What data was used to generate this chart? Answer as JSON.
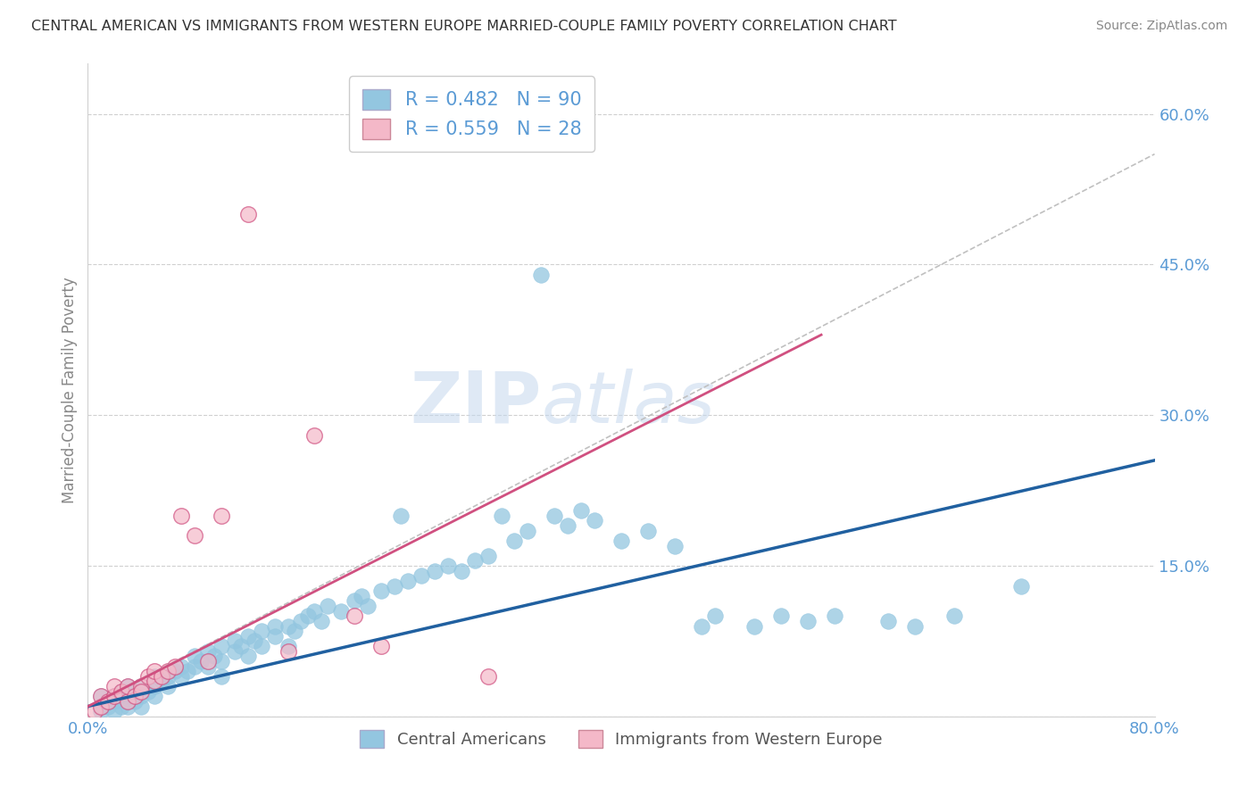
{
  "title": "CENTRAL AMERICAN VS IMMIGRANTS FROM WESTERN EUROPE MARRIED-COUPLE FAMILY POVERTY CORRELATION CHART",
  "source": "Source: ZipAtlas.com",
  "ylabel": "Married-Couple Family Poverty",
  "watermark_zip": "ZIP",
  "watermark_atlas": "atlas",
  "xlim": [
    0.0,
    0.8
  ],
  "ylim": [
    0.0,
    0.65
  ],
  "yticks": [
    0.0,
    0.15,
    0.3,
    0.45,
    0.6
  ],
  "yticklabels": [
    "",
    "15.0%",
    "30.0%",
    "45.0%",
    "60.0%"
  ],
  "legend_R_blue": "0.482",
  "legend_N_blue": "90",
  "legend_R_pink": "0.559",
  "legend_N_pink": "28",
  "legend_label_blue": "Central Americans",
  "legend_label_pink": "Immigrants from Western Europe",
  "blue_color": "#93c6e0",
  "pink_color": "#f4b8c8",
  "line_blue_color": "#2060a0",
  "line_pink_color": "#d05080",
  "axis_label_color": "#5b9bd5",
  "background_color": "#ffffff",
  "blue_line": [
    0.0,
    0.01,
    0.8,
    0.255
  ],
  "pink_line": [
    0.0,
    0.01,
    0.55,
    0.38
  ],
  "gray_dashed_line": [
    0.0,
    0.01,
    0.8,
    0.56
  ],
  "blue_scatter": [
    [
      0.01,
      0.005
    ],
    [
      0.01,
      0.01
    ],
    [
      0.01,
      0.02
    ],
    [
      0.015,
      0.01
    ],
    [
      0.02,
      0.015
    ],
    [
      0.02,
      0.005
    ],
    [
      0.02,
      0.02
    ],
    [
      0.025,
      0.01
    ],
    [
      0.025,
      0.025
    ],
    [
      0.03,
      0.01
    ],
    [
      0.03,
      0.02
    ],
    [
      0.03,
      0.03
    ],
    [
      0.035,
      0.015
    ],
    [
      0.035,
      0.025
    ],
    [
      0.04,
      0.02
    ],
    [
      0.04,
      0.03
    ],
    [
      0.04,
      0.01
    ],
    [
      0.045,
      0.025
    ],
    [
      0.05,
      0.03
    ],
    [
      0.05,
      0.04
    ],
    [
      0.05,
      0.02
    ],
    [
      0.055,
      0.035
    ],
    [
      0.06,
      0.04
    ],
    [
      0.06,
      0.03
    ],
    [
      0.065,
      0.045
    ],
    [
      0.07,
      0.04
    ],
    [
      0.07,
      0.05
    ],
    [
      0.075,
      0.045
    ],
    [
      0.08,
      0.05
    ],
    [
      0.08,
      0.06
    ],
    [
      0.085,
      0.055
    ],
    [
      0.09,
      0.05
    ],
    [
      0.09,
      0.065
    ],
    [
      0.095,
      0.06
    ],
    [
      0.1,
      0.07
    ],
    [
      0.1,
      0.055
    ],
    [
      0.1,
      0.04
    ],
    [
      0.11,
      0.065
    ],
    [
      0.11,
      0.075
    ],
    [
      0.115,
      0.07
    ],
    [
      0.12,
      0.08
    ],
    [
      0.12,
      0.06
    ],
    [
      0.125,
      0.075
    ],
    [
      0.13,
      0.085
    ],
    [
      0.13,
      0.07
    ],
    [
      0.14,
      0.09
    ],
    [
      0.14,
      0.08
    ],
    [
      0.15,
      0.09
    ],
    [
      0.15,
      0.07
    ],
    [
      0.155,
      0.085
    ],
    [
      0.16,
      0.095
    ],
    [
      0.165,
      0.1
    ],
    [
      0.17,
      0.105
    ],
    [
      0.175,
      0.095
    ],
    [
      0.18,
      0.11
    ],
    [
      0.19,
      0.105
    ],
    [
      0.2,
      0.115
    ],
    [
      0.205,
      0.12
    ],
    [
      0.21,
      0.11
    ],
    [
      0.22,
      0.125
    ],
    [
      0.23,
      0.13
    ],
    [
      0.235,
      0.2
    ],
    [
      0.24,
      0.135
    ],
    [
      0.25,
      0.14
    ],
    [
      0.26,
      0.145
    ],
    [
      0.27,
      0.15
    ],
    [
      0.28,
      0.145
    ],
    [
      0.29,
      0.155
    ],
    [
      0.3,
      0.16
    ],
    [
      0.31,
      0.2
    ],
    [
      0.32,
      0.175
    ],
    [
      0.33,
      0.185
    ],
    [
      0.34,
      0.44
    ],
    [
      0.35,
      0.2
    ],
    [
      0.36,
      0.19
    ],
    [
      0.37,
      0.205
    ],
    [
      0.38,
      0.195
    ],
    [
      0.4,
      0.175
    ],
    [
      0.42,
      0.185
    ],
    [
      0.44,
      0.17
    ],
    [
      0.46,
      0.09
    ],
    [
      0.47,
      0.1
    ],
    [
      0.5,
      0.09
    ],
    [
      0.52,
      0.1
    ],
    [
      0.54,
      0.095
    ],
    [
      0.56,
      0.1
    ],
    [
      0.6,
      0.095
    ],
    [
      0.62,
      0.09
    ],
    [
      0.65,
      0.1
    ],
    [
      0.7,
      0.13
    ]
  ],
  "pink_scatter": [
    [
      0.005,
      0.005
    ],
    [
      0.01,
      0.01
    ],
    [
      0.01,
      0.02
    ],
    [
      0.015,
      0.015
    ],
    [
      0.02,
      0.02
    ],
    [
      0.02,
      0.03
    ],
    [
      0.025,
      0.025
    ],
    [
      0.03,
      0.015
    ],
    [
      0.03,
      0.03
    ],
    [
      0.035,
      0.02
    ],
    [
      0.04,
      0.03
    ],
    [
      0.04,
      0.025
    ],
    [
      0.045,
      0.04
    ],
    [
      0.05,
      0.035
    ],
    [
      0.05,
      0.045
    ],
    [
      0.055,
      0.04
    ],
    [
      0.06,
      0.045
    ],
    [
      0.065,
      0.05
    ],
    [
      0.07,
      0.2
    ],
    [
      0.08,
      0.18
    ],
    [
      0.09,
      0.055
    ],
    [
      0.1,
      0.2
    ],
    [
      0.12,
      0.5
    ],
    [
      0.15,
      0.065
    ],
    [
      0.17,
      0.28
    ],
    [
      0.2,
      0.1
    ],
    [
      0.22,
      0.07
    ],
    [
      0.3,
      0.04
    ]
  ]
}
